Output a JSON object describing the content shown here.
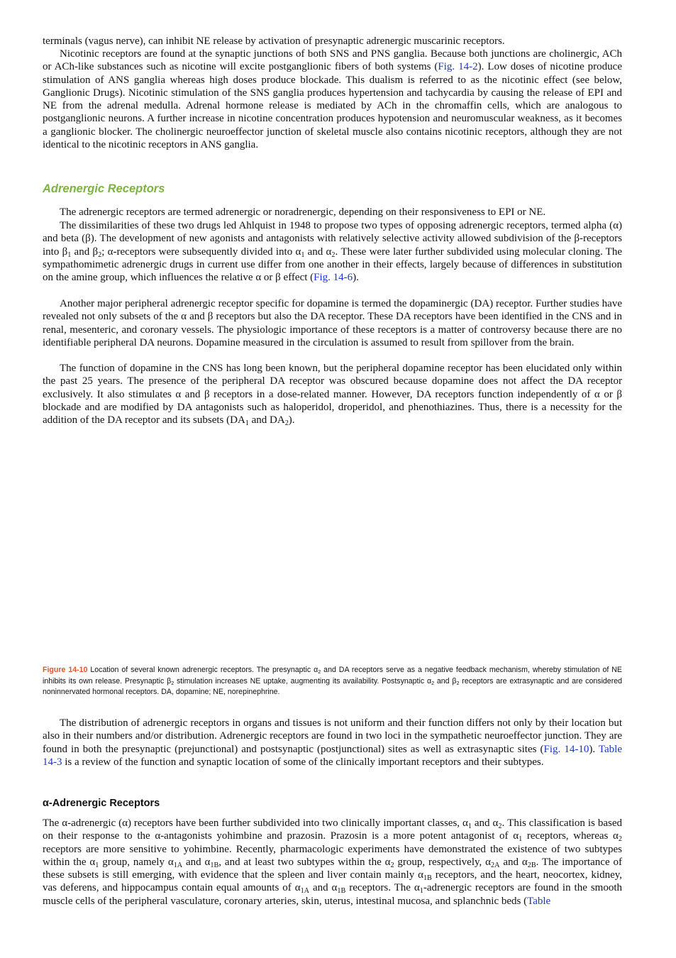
{
  "blocks": [
    {
      "kind": "paragraph",
      "indent": false,
      "runs": [
        "terminals (vagus nerve), can inhibit NE release by activation of presynaptic adrenergic muscarinic receptors."
      ]
    },
    {
      "kind": "paragraph",
      "indent": true,
      "runs": [
        "Nicotinic receptors are found at the synaptic junctions of both SNS and PNS ganglia. Because both junctions are cholinergic, ACh or ACh-like substances such as nicotine will excite postganglionic fibers of both systems (",
        {
          "text": "Fig. 14-2",
          "style": "link"
        },
        "). Low doses of nicotine produce stimulation of ANS ganglia whereas high doses produce blockade. This dualism is referred to as the nicotinic effect (see below, Ganglionic Drugs). Nicotinic stimulation of the SNS ganglia produces hypertension and tachycardia by causing the release of EPI and NE from the adrenal medulla. Adrenal hormone release is mediated by ACh in the chromaffin cells, which are analogous to postganglionic neurons. A further increase in nicotine concentration produces hypotension and neuromuscular weakness, as it becomes a ganglionic blocker. The cholinergic neuroeffector junction of skeletal muscle also contains nicotinic receptors, although they are not identical to the nicotinic receptors in ANS ganglia."
      ]
    },
    {
      "kind": "heading-green",
      "runs": [
        "Adrenergic Receptors"
      ]
    },
    {
      "kind": "paragraph",
      "indent": true,
      "runs": [
        "The adrenergic receptors are termed adrenergic or noradrenergic, depending on their responsiveness to EPI or NE."
      ]
    },
    {
      "kind": "paragraph",
      "indent": true,
      "runs": [
        "The dissimilarities of these two drugs led Ahlquist in 1948 to propose two types of opposing adrenergic receptors, termed alpha (α) and beta (β). The development of new agonists and antagonists with relatively selective activity allowed subdivision of the β-receptors into β",
        {
          "text": "1",
          "style": "sub"
        },
        " and β",
        {
          "text": "2",
          "style": "sub"
        },
        "; α-receptors were subsequently divided into α",
        {
          "text": "1",
          "style": "sub"
        },
        " and α",
        {
          "text": "2",
          "style": "sub"
        },
        ". These were later further subdivided using molecular cloning. The sympathomimetic adrenergic drugs in current use differ from one another in their effects, largely because of differences in substitution on the amine group, which influences the relative α or β effect (",
        {
          "text": "Fig. 14-6",
          "style": "link"
        },
        ")."
      ]
    },
    {
      "kind": "paragraph",
      "indent": true,
      "runs": [
        "Another major peripheral adrenergic receptor specific for dopamine is termed the dopaminergic (DA) receptor. Further studies have revealed not only subsets of the α and β receptors but also the DA receptor. These DA receptors have been identified in the CNS and in renal, mesenteric, and coronary vessels. The physiologic importance of these receptors is a matter of controversy because there are no identifiable peripheral DA neurons. Dopamine measured in the circulation is assumed to result from spillover from the brain."
      ]
    },
    {
      "kind": "paragraph",
      "indent": true,
      "runs": [
        "The function of dopamine in the CNS has long been known, but the peripheral dopamine receptor has been elucidated only within the past 25 years. The presence of the peripheral DA receptor was obscured because dopamine does not affect the DA receptor exclusively. It also stimulates α and β receptors in a dose-related manner. However, DA receptors function independently of α or β blockade and are modified by DA antagonists such as haloperidol, droperidol, and phenothiazines. Thus, there is a necessity for the addition of the DA receptor and its subsets (DA",
        {
          "text": "1",
          "style": "sub"
        },
        " and DA",
        {
          "text": "2",
          "style": "sub"
        },
        ")."
      ]
    },
    {
      "kind": "caption",
      "runs": [
        {
          "text": "Figure 14-10",
          "style": "label"
        },
        " Location of several known adrenergic receptors. The presynaptic α",
        {
          "text": "2",
          "style": "sub"
        },
        " and DA receptors serve as a negative feedback mechanism, whereby stimulation of NE inhibits its own release. Presynaptic β",
        {
          "text": "2",
          "style": "sub"
        },
        " stimulation increases NE uptake, augmenting its availability. Postsynaptic α",
        {
          "text": "2",
          "style": "sub"
        },
        " and β",
        {
          "text": "2",
          "style": "sub"
        },
        " receptors are extrasynaptic and are considered noninnervated hormonal receptors. DA, dopamine; NE, norepinephrine."
      ]
    },
    {
      "kind": "paragraph",
      "indent": true,
      "runs": [
        "The distribution of adrenergic receptors in organs and tissues is not uniform and their function differs not only by their location but also in their numbers and/or distribution. Adrenergic receptors are found in two loci in the sympathetic neuroeffector junction. They are found in both the presynaptic (prejunctional) and postsynaptic (postjunctional) sites as well as extrasynaptic sites (",
        {
          "text": "Fig. 14-10",
          "style": "link"
        },
        "). ",
        {
          "text": "Table 14-3",
          "style": "link"
        },
        " is a review of the function and synaptic location of some of the clinically important receptors and their subtypes."
      ]
    },
    {
      "kind": "heading-black",
      "runs": [
        "α-Adrenergic Receptors"
      ]
    },
    {
      "kind": "paragraph",
      "indent": false,
      "runs": [
        "The α-adrenergic (α) receptors have been further subdivided into two clinically important classes, α",
        {
          "text": "1",
          "style": "sub"
        },
        " and α",
        {
          "text": "2",
          "style": "sub"
        },
        ". This classification is based on their response to the α-antagonists yohimbine and prazosin. Prazosin is a more potent antagonist of α",
        {
          "text": "1",
          "style": "sub"
        },
        " receptors, whereas α",
        {
          "text": "2",
          "style": "sub"
        },
        " receptors are more sensitive to yohimbine. Recently, pharmacologic experiments have demonstrated the existence of two subtypes within the α",
        {
          "text": "1",
          "style": "sub"
        },
        " group, namely α",
        {
          "text": "1A",
          "style": "sub"
        },
        " and α",
        {
          "text": "1B",
          "style": "sub"
        },
        ", and at least two subtypes within the α",
        {
          "text": "2",
          "style": "sub"
        },
        " group, respectively, α",
        {
          "text": "2A",
          "style": "sub"
        },
        " and α",
        {
          "text": "2B",
          "style": "sub"
        },
        ". The importance of these subsets is still emerging, with evidence that the spleen and liver contain mainly α",
        {
          "text": "1B",
          "style": "sub"
        },
        " receptors, and the heart, neocortex, kidney, vas deferens, and hippocampus contain equal amounts of α",
        {
          "text": "1A",
          "style": "sub"
        },
        " and α",
        {
          "text": "1B",
          "style": "sub"
        },
        " receptors. The α",
        {
          "text": "1",
          "style": "sub"
        },
        "-adrenergic receptors are found in the smooth muscle cells of the peripheral vasculature, coronary arteries, skin, uterus, intestinal mucosa, and splanchnic beds (",
        {
          "text": "Table",
          "style": "link"
        }
      ]
    }
  ]
}
